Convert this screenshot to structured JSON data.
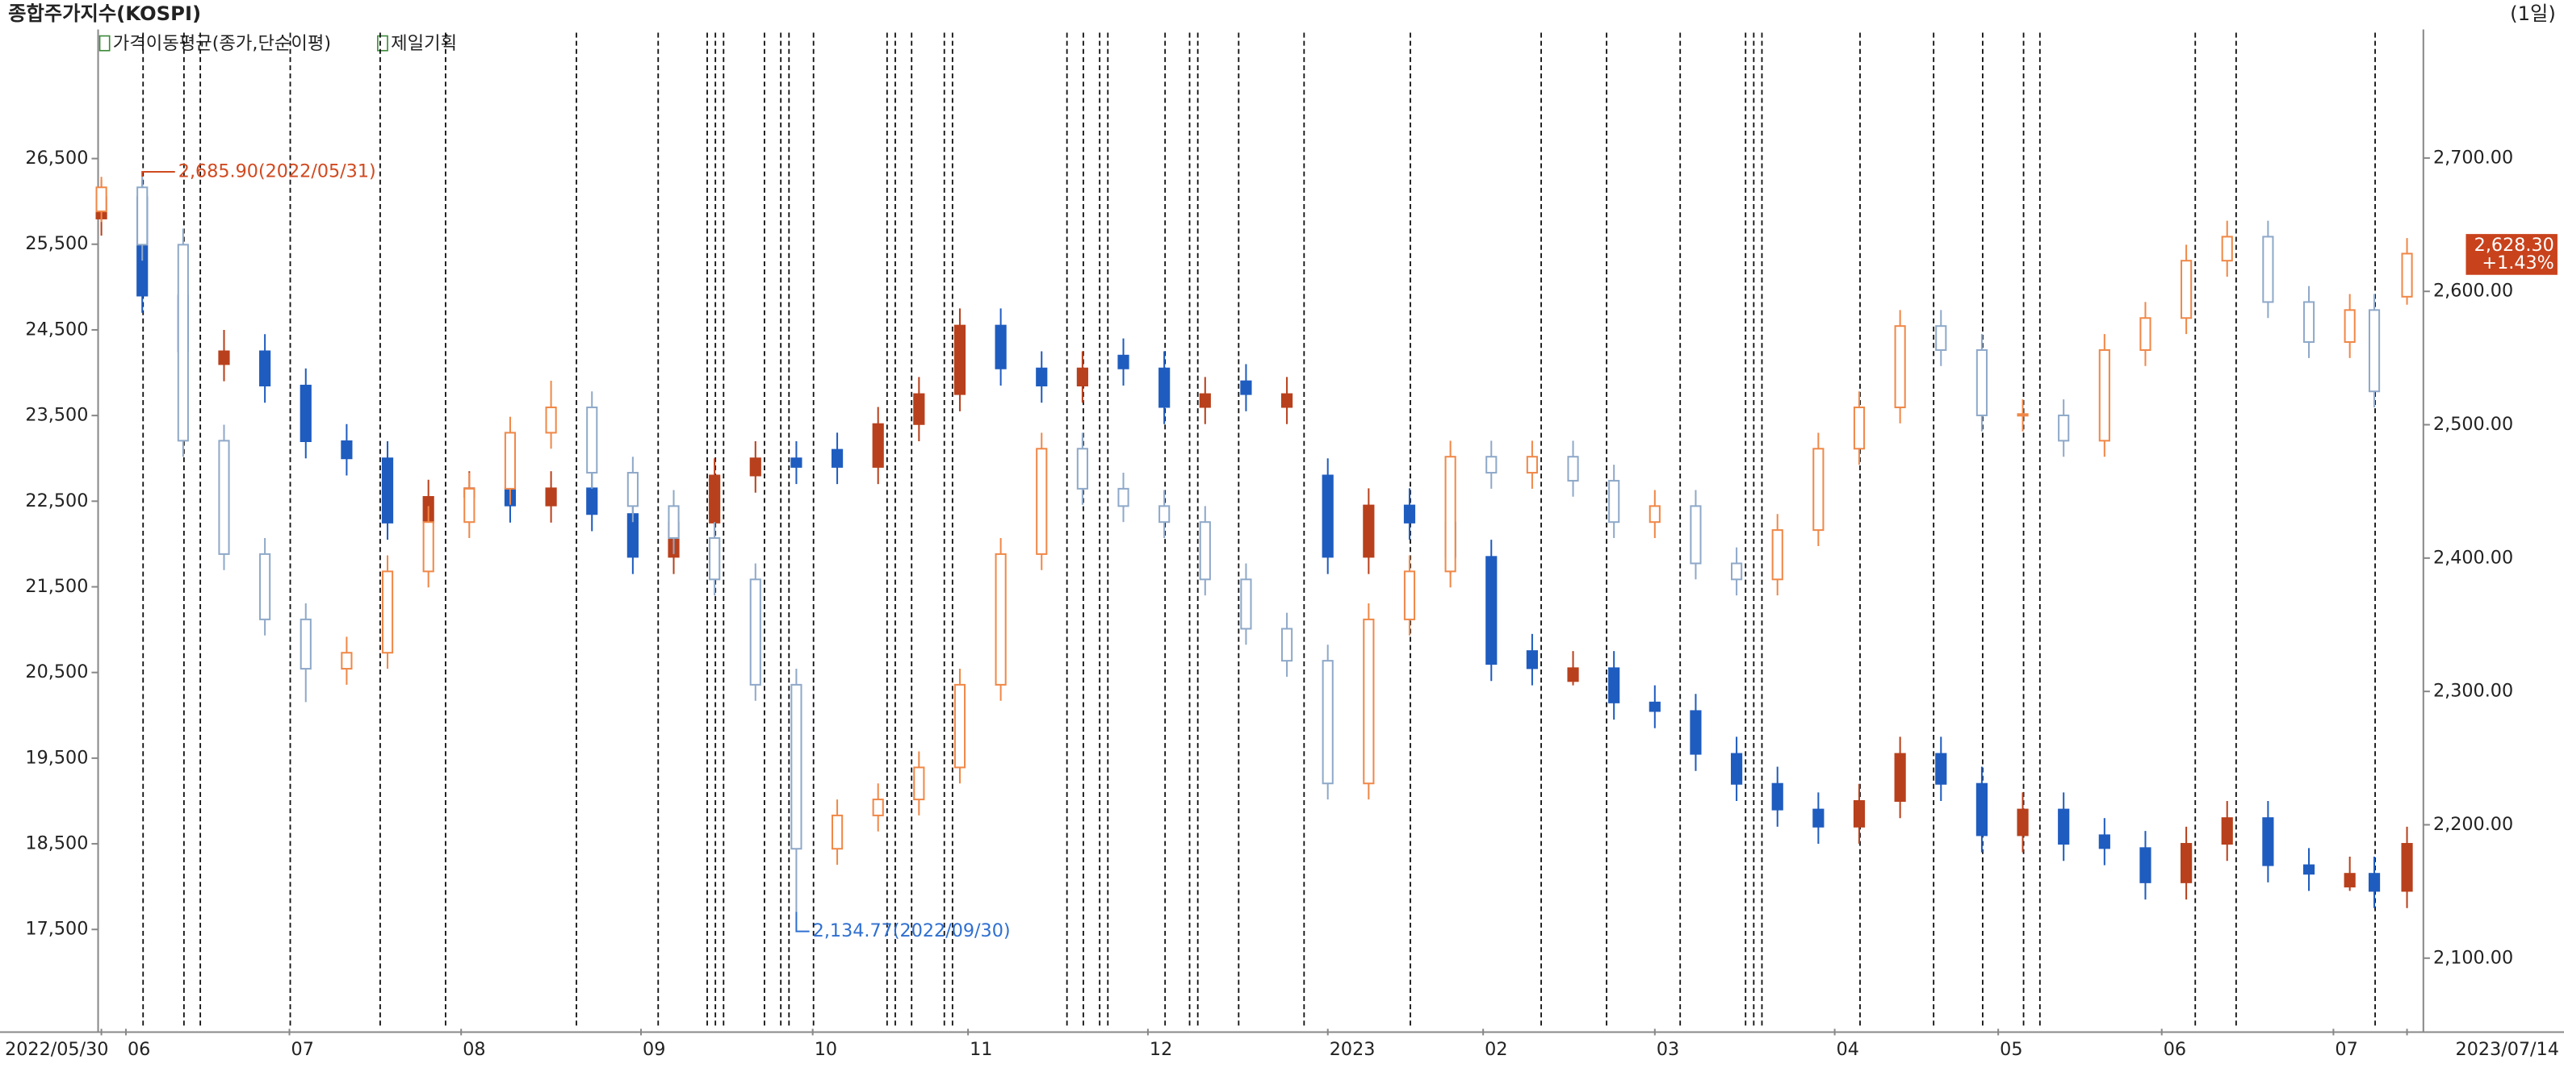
{
  "chart_data": {
    "type": "candlestick",
    "title": "종합주가지수(KOSPI)",
    "period": "(1일)",
    "indicators": [
      "가격이동평균(종가,단순이평)"
    ],
    "xlim": [
      -0.4,
      284
    ],
    "xticks": [
      {
        "value": 0,
        "label": "2022/05/30"
      },
      {
        "value": 3,
        "label": "06"
      },
      {
        "value": 23,
        "label": "07"
      },
      {
        "value": 44,
        "label": "08"
      },
      {
        "value": 66,
        "label": "09"
      },
      {
        "value": 87,
        "label": "10"
      },
      {
        "value": 106,
        "label": "11"
      },
      {
        "value": 128,
        "label": "12"
      },
      {
        "value": 150,
        "label": "2023"
      },
      {
        "value": 169,
        "label": "02"
      },
      {
        "value": 190,
        "label": "03"
      },
      {
        "value": 212,
        "label": "04"
      },
      {
        "value": 232,
        "label": "05"
      },
      {
        "value": 252,
        "label": "06"
      },
      {
        "value": 273,
        "label": "07"
      },
      {
        "value": 282,
        "label": "2023/07/14"
      }
    ],
    "ylim": [
      16340,
      27970
    ],
    "yticks": [
      {
        "value": 17500,
        "label": "17,500"
      },
      {
        "value": 18500,
        "label": "18,500"
      },
      {
        "value": 19500,
        "label": "19,500"
      },
      {
        "value": 20500,
        "label": "20,500"
      },
      {
        "value": 21500,
        "label": "21,500"
      },
      {
        "value": 22500,
        "label": "22,500"
      },
      {
        "value": 23500,
        "label": "23,500"
      },
      {
        "value": 24500,
        "label": "24,500"
      },
      {
        "value": 25500,
        "label": "25,500"
      },
      {
        "value": 26500,
        "label": "26,500"
      }
    ],
    "y2lim": [
      2047,
      2794
    ],
    "y2ticks": [
      {
        "value": 2100,
        "label": "2,100.00"
      },
      {
        "value": 2200,
        "label": "2,200.00"
      },
      {
        "value": 2300,
        "label": "2,300.00"
      },
      {
        "value": 2400,
        "label": "2,400.00"
      },
      {
        "value": 2500,
        "label": "2,500.00"
      },
      {
        "value": 2600,
        "label": "2,600.00"
      },
      {
        "value": 2700,
        "label": "2,700.00"
      }
    ],
    "event_lines": [
      5,
      10,
      12,
      23,
      34,
      42,
      58,
      68,
      74,
      75,
      76,
      81,
      83,
      84,
      87,
      96,
      97,
      99,
      103,
      104,
      118,
      120,
      122,
      123,
      130,
      133,
      134,
      139,
      147,
      160,
      176,
      184,
      193,
      201,
      202,
      203,
      215,
      224,
      230,
      235,
      237,
      256,
      261,
      278
    ],
    "series": [
      {
        "name": "제일기획",
        "up_color": "#b8401c",
        "down_color": "#1f5cbf",
        "hollow": false,
        "x": [
          0,
          5,
          10,
          15,
          20,
          25,
          30,
          35,
          40,
          45,
          50,
          55,
          60,
          65,
          70,
          75,
          80,
          85,
          90,
          95,
          100,
          105,
          110,
          115,
          120,
          125,
          130,
          135,
          140,
          145,
          150,
          155,
          160,
          165,
          170,
          175,
          180,
          185,
          190,
          195,
          200,
          205,
          210,
          215,
          220,
          225,
          230,
          235,
          240,
          245,
          250,
          255,
          260,
          265,
          270,
          275,
          278,
          282
        ],
        "values": [
          [
            25800,
            26250,
            25600,
            26050
          ],
          [
            26050,
            26250,
            24700,
            24900
          ],
          [
            24900,
            25100,
            24050,
            24250
          ],
          [
            24100,
            24500,
            23900,
            24250
          ],
          [
            24250,
            24450,
            23650,
            23850
          ],
          [
            23850,
            24050,
            23000,
            23200
          ],
          [
            23200,
            23400,
            22800,
            23000
          ],
          [
            23000,
            23200,
            22050,
            22250
          ],
          [
            22250,
            22750,
            22050,
            22550
          ],
          [
            22550,
            22850,
            22350,
            22650
          ],
          [
            22650,
            22850,
            22250,
            22450
          ],
          [
            22450,
            22850,
            22250,
            22650
          ],
          [
            22650,
            22850,
            22150,
            22350
          ],
          [
            22350,
            22550,
            21650,
            21850
          ],
          [
            21850,
            22450,
            21650,
            22250
          ],
          [
            22250,
            23000,
            22050,
            22800
          ],
          [
            22800,
            23200,
            22600,
            23000
          ],
          [
            23000,
            23200,
            22700,
            22900
          ],
          [
            23100,
            23300,
            22700,
            22900
          ],
          [
            22900,
            23600,
            22700,
            23400
          ],
          [
            23400,
            23950,
            23200,
            23750
          ],
          [
            23750,
            24750,
            23550,
            24550
          ],
          [
            24550,
            24750,
            23850,
            24050
          ],
          [
            24050,
            24250,
            23650,
            23850
          ],
          [
            23850,
            24250,
            23650,
            24050
          ],
          [
            24200,
            24400,
            23850,
            24050
          ],
          [
            24050,
            24250,
            23400,
            23600
          ],
          [
            23600,
            23950,
            23400,
            23750
          ],
          [
            23900,
            24100,
            23550,
            23750
          ],
          [
            23600,
            23950,
            23400,
            23750
          ],
          [
            22800,
            23000,
            21650,
            21850
          ],
          [
            21850,
            22650,
            21650,
            22450
          ],
          [
            22450,
            22650,
            22050,
            22250
          ],
          [
            22250,
            22450,
            21650,
            21850
          ],
          [
            21850,
            22050,
            20400,
            20600
          ],
          [
            20750,
            20950,
            20350,
            20550
          ],
          [
            20400,
            20750,
            20350,
            20550
          ],
          [
            20550,
            20750,
            19950,
            20150
          ],
          [
            20150,
            20350,
            19850,
            20050
          ],
          [
            20050,
            20250,
            19350,
            19550
          ],
          [
            19550,
            19750,
            19000,
            19200
          ],
          [
            19200,
            19400,
            18700,
            18900
          ],
          [
            18900,
            19100,
            18500,
            18700
          ],
          [
            18700,
            19200,
            18500,
            19000
          ],
          [
            19000,
            19750,
            18800,
            19550
          ],
          [
            19550,
            19750,
            19000,
            19200
          ],
          [
            19200,
            19400,
            18400,
            18600
          ],
          [
            18600,
            19100,
            18400,
            18900
          ],
          [
            18900,
            19100,
            18300,
            18500
          ],
          [
            18600,
            18800,
            18250,
            18450
          ],
          [
            18450,
            18650,
            17850,
            18050
          ],
          [
            18050,
            18700,
            17850,
            18500
          ],
          [
            18500,
            19000,
            18300,
            18800
          ],
          [
            18800,
            19000,
            18050,
            18250
          ],
          [
            18250,
            18450,
            17950,
            18150
          ],
          [
            18000,
            18350,
            17950,
            18150
          ],
          [
            18150,
            18350,
            17750,
            17950
          ],
          [
            17950,
            18700,
            17750,
            18500
          ]
        ]
      },
      {
        "axis": "y2",
        "up_color": "#f08848",
        "down_color": "#8fa9c9",
        "hollow": true,
        "last_label": "2,628.30",
        "change_label": "+1.43%",
        "x": [
          0,
          5,
          10,
          15,
          20,
          25,
          30,
          35,
          40,
          45,
          50,
          55,
          60,
          65,
          70,
          75,
          80,
          85,
          90,
          95,
          100,
          105,
          110,
          115,
          120,
          125,
          130,
          135,
          140,
          145,
          150,
          155,
          160,
          165,
          170,
          175,
          180,
          185,
          190,
          195,
          200,
          205,
          210,
          215,
          220,
          225,
          230,
          235,
          240,
          245,
          250,
          255,
          260,
          265,
          270,
          275,
          278,
          282
        ],
        "values": [
          [
            2660,
            2685.9,
            2652,
            2678
          ],
          [
            2678,
            2686,
            2623,
            2635
          ],
          [
            2635,
            2647,
            2476,
            2488
          ],
          [
            2488,
            2500,
            2391,
            2403
          ],
          [
            2403,
            2415,
            2342,
            2354
          ],
          [
            2354,
            2366,
            2292,
            2317
          ],
          [
            2317,
            2341,
            2305,
            2329
          ],
          [
            2329,
            2402,
            2317,
            2390
          ],
          [
            2390,
            2439,
            2378,
            2427
          ],
          [
            2427,
            2464,
            2415,
            2452
          ],
          [
            2452,
            2506,
            2440,
            2494
          ],
          [
            2494,
            2533,
            2482,
            2513
          ],
          [
            2513,
            2525,
            2452,
            2464
          ],
          [
            2464,
            2476,
            2427,
            2439
          ],
          [
            2439,
            2451,
            2403,
            2415
          ],
          [
            2415,
            2427,
            2372,
            2384
          ],
          [
            2384,
            2396,
            2293,
            2305
          ],
          [
            2305,
            2317,
            2134.77,
            2182
          ],
          [
            2182,
            2219,
            2170,
            2207
          ],
          [
            2207,
            2231,
            2195,
            2219
          ],
          [
            2219,
            2255,
            2207,
            2243
          ],
          [
            2243,
            2317,
            2231,
            2305
          ],
          [
            2305,
            2415,
            2293,
            2403
          ],
          [
            2403,
            2494,
            2391,
            2482
          ],
          [
            2482,
            2494,
            2440,
            2452
          ],
          [
            2452,
            2464,
            2427,
            2439
          ],
          [
            2439,
            2451,
            2415,
            2427
          ],
          [
            2427,
            2439,
            2372,
            2384
          ],
          [
            2384,
            2396,
            2335,
            2347
          ],
          [
            2347,
            2359,
            2311,
            2323
          ],
          [
            2323,
            2335,
            2219,
            2231
          ],
          [
            2231,
            2366,
            2219,
            2354
          ],
          [
            2354,
            2402,
            2342,
            2390
          ],
          [
            2390,
            2488,
            2378,
            2476
          ],
          [
            2476,
            2488,
            2452,
            2464
          ],
          [
            2464,
            2488,
            2452,
            2476
          ],
          [
            2476,
            2488,
            2446,
            2458
          ],
          [
            2458,
            2470,
            2415,
            2427
          ],
          [
            2427,
            2451,
            2415,
            2439
          ],
          [
            2439,
            2451,
            2384,
            2396
          ],
          [
            2396,
            2408,
            2372,
            2384
          ],
          [
            2384,
            2433,
            2372,
            2421
          ],
          [
            2421,
            2494,
            2409,
            2482
          ],
          [
            2482,
            2525,
            2470,
            2513
          ],
          [
            2513,
            2586,
            2501,
            2574
          ],
          [
            2574,
            2586,
            2544,
            2556
          ],
          [
            2556,
            2568,
            2495,
            2507
          ],
          [
            2507,
            2519,
            2495,
            2508
          ],
          [
            2507,
            2519,
            2476,
            2488
          ],
          [
            2488,
            2568,
            2476,
            2556
          ],
          [
            2556,
            2592,
            2544,
            2580
          ],
          [
            2580,
            2635,
            2568,
            2623
          ],
          [
            2623,
            2653,
            2611,
            2641
          ],
          [
            2641,
            2653,
            2580,
            2592
          ],
          [
            2592,
            2604,
            2550,
            2562
          ],
          [
            2562,
            2598,
            2550,
            2586
          ],
          [
            2586,
            2598,
            2513,
            2525
          ],
          [
            2596,
            2640,
            2590,
            2628.3
          ]
        ]
      }
    ],
    "annotations": [
      {
        "text": "2,685.90(2022/05/31)",
        "color": "#d04a20"
      },
      {
        "text": "2,134.77(2022/09/30)",
        "color": "#2f6fd0"
      }
    ]
  }
}
